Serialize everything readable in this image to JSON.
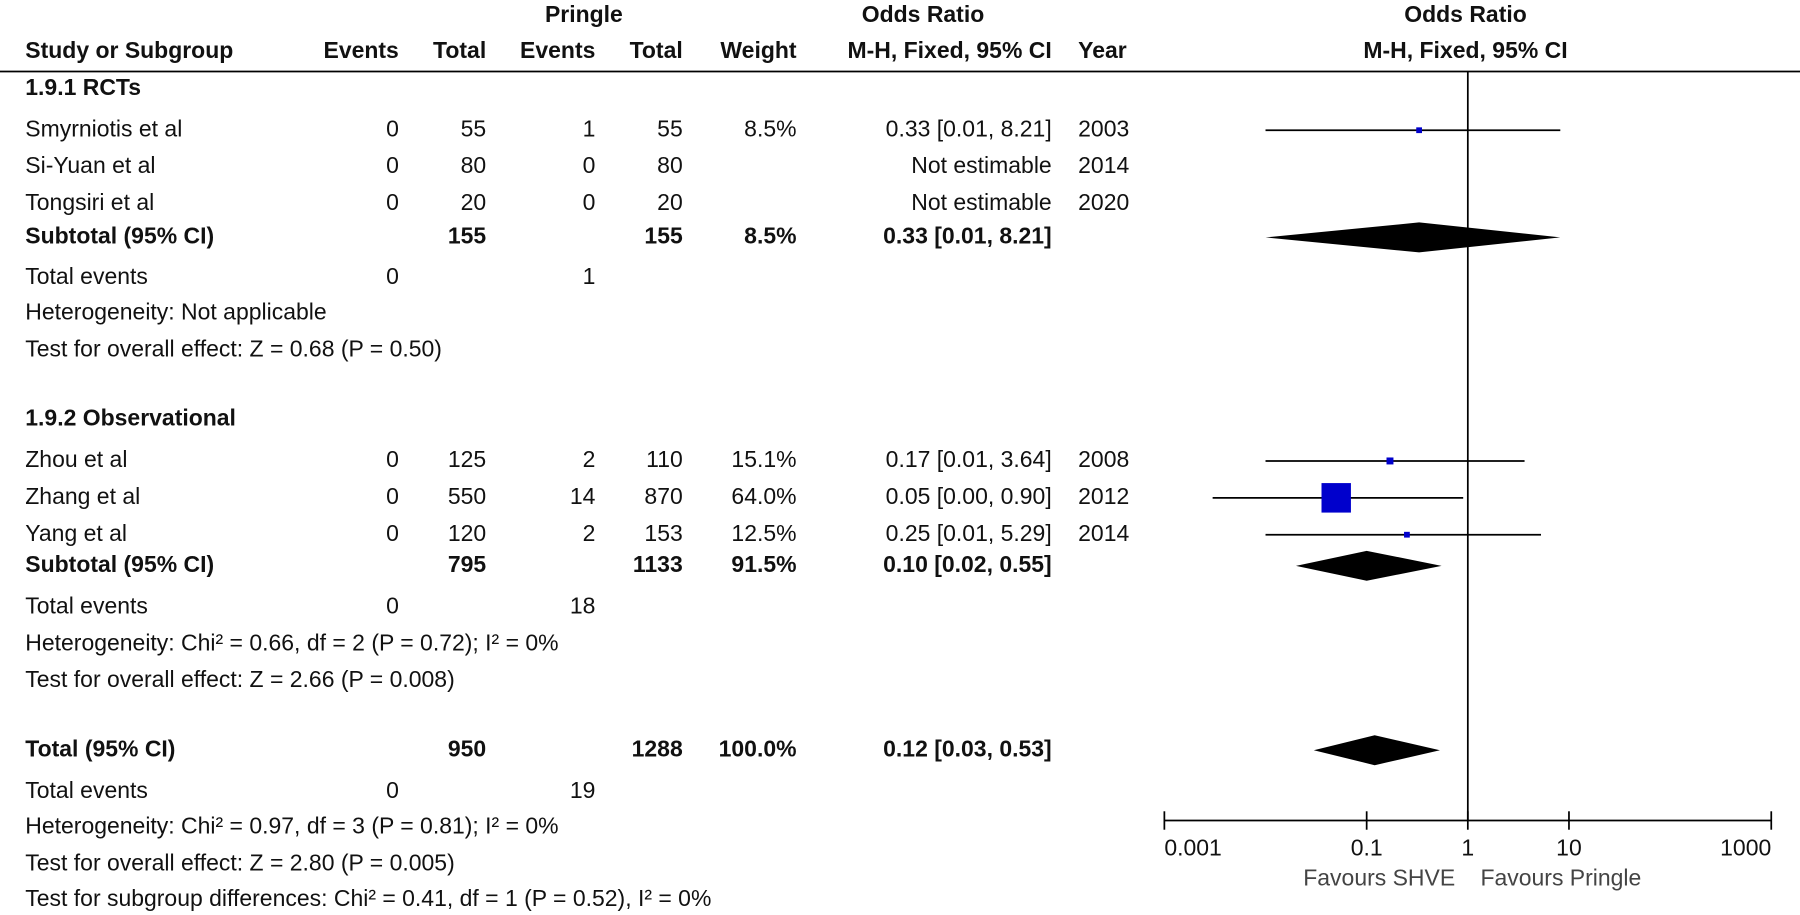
{
  "header": {
    "group2": "Pringle",
    "col_title": "Odds Ratio",
    "plot_title": "Odds Ratio",
    "study": "Study or Subgroup",
    "events1": "Events",
    "total1": "Total",
    "events2": "Events",
    "total2": "Total",
    "weight": "Weight",
    "method": "M-H, Fixed, 95% CI",
    "year": "Year",
    "plot_method": "M-H, Fixed, 95% CI"
  },
  "subgroups": [
    {
      "title": "1.9.1 RCTs",
      "studies": [
        {
          "name": "Smyrniotis et al",
          "events1": 0,
          "total1": 55,
          "events2": 1,
          "total2": 55,
          "weight": 8.5,
          "weight_label": "8.5%",
          "or": 0.33,
          "lower": 0.01,
          "upper": 8.21,
          "ci_label": "0.33 [0.01, 8.21]",
          "year": 2003
        },
        {
          "name": "Si-Yuan et al",
          "events1": 0,
          "total1": 80,
          "events2": 0,
          "total2": 80,
          "ci_label": "Not estimable",
          "year": 2014
        },
        {
          "name": "Tongsiri et al",
          "events1": 0,
          "total1": 20,
          "events2": 0,
          "total2": 20,
          "ci_label": "Not estimable",
          "year": 2020
        }
      ],
      "subtotal": {
        "label": "Subtotal (95% CI)",
        "total1": 155,
        "total2": 155,
        "weight": 8.5,
        "weight_label": "8.5%",
        "or": 0.33,
        "lower": 0.01,
        "upper": 8.21,
        "ci_label": "0.33 [0.01, 8.21]"
      },
      "total_events": {
        "label": "Total events",
        "events1": 0,
        "events2": 1
      },
      "heterogeneity": "Heterogeneity: Not applicable",
      "overall_effect": "Test for overall effect: Z = 0.68 (P = 0.50)"
    },
    {
      "title": "1.9.2 Observational",
      "studies": [
        {
          "name": "Zhou et al",
          "events1": 0,
          "total1": 125,
          "events2": 2,
          "total2": 110,
          "weight": 15.1,
          "weight_label": "15.1%",
          "or": 0.17,
          "lower": 0.01,
          "upper": 3.64,
          "ci_label": "0.17 [0.01, 3.64]",
          "year": 2008
        },
        {
          "name": "Zhang et al",
          "events1": 0,
          "total1": 550,
          "events2": 14,
          "total2": 870,
          "weight": 64.0,
          "weight_label": "64.0%",
          "or": 0.05,
          "lower": 0.003,
          "upper": 0.9,
          "ci_label": "0.05 [0.00, 0.90]",
          "year": 2012
        },
        {
          "name": "Yang et al",
          "events1": 0,
          "total1": 120,
          "events2": 2,
          "total2": 153,
          "weight": 12.5,
          "weight_label": "12.5%",
          "or": 0.25,
          "lower": 0.01,
          "upper": 5.29,
          "ci_label": "0.25 [0.01, 5.29]",
          "year": 2014
        }
      ],
      "subtotal": {
        "label": "Subtotal (95% CI)",
        "total1": 795,
        "total2": 1133,
        "weight": 91.5,
        "weight_label": "91.5%",
        "or": 0.1,
        "lower": 0.02,
        "upper": 0.55,
        "ci_label": "0.10 [0.02, 0.55]"
      },
      "total_events": {
        "label": "Total events",
        "events1": 0,
        "events2": 18
      },
      "heterogeneity": "Heterogeneity: Chi² = 0.66, df = 2 (P = 0.72); I² = 0%",
      "overall_effect": "Test for overall effect: Z = 2.66 (P = 0.008)"
    }
  ],
  "total": {
    "label": "Total (95% CI)",
    "total1": 950,
    "total2": 1288,
    "weight": 100.0,
    "weight_label": "100.0%",
    "or": 0.12,
    "lower": 0.03,
    "upper": 0.53,
    "ci_label": "0.12 [0.03, 0.53]",
    "total_events": {
      "label": "Total events",
      "events1": 0,
      "events2": 19
    },
    "heterogeneity": "Heterogeneity: Chi² = 0.97, df = 3 (P = 0.81); I² = 0%",
    "overall_effect": "Test for overall effect: Z = 2.80 (P = 0.005)",
    "subgroup_differences": "Test for subgroup differences: Chi² = 0.41, df = 1 (P = 0.52), I² = 0%"
  },
  "chart_data": {
    "type": "forest",
    "xlim": [
      0.001,
      1000
    ],
    "xticks": [
      0.001,
      0.1,
      1,
      10,
      1000
    ],
    "log": true,
    "favours_left": "Favours SHVE",
    "favours_right": "Favours Pringle",
    "line_color": "#000000",
    "square_color": "#0000cc",
    "diamond_color": "#000000"
  }
}
